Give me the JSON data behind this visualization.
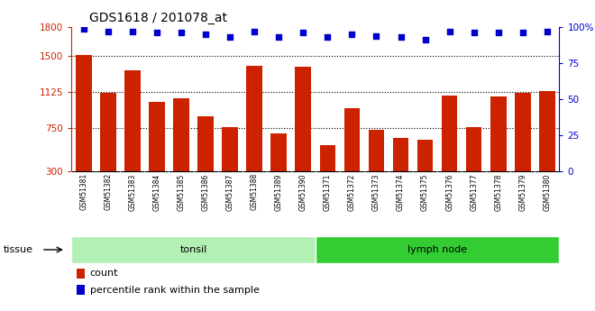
{
  "title": "GDS1618 / 201078_at",
  "samples": [
    "GSM51381",
    "GSM51382",
    "GSM51383",
    "GSM51384",
    "GSM51385",
    "GSM51386",
    "GSM51387",
    "GSM51388",
    "GSM51389",
    "GSM51390",
    "GSM51371",
    "GSM51372",
    "GSM51373",
    "GSM51374",
    "GSM51375",
    "GSM51376",
    "GSM51377",
    "GSM51378",
    "GSM51379",
    "GSM51380"
  ],
  "counts": [
    1510,
    1120,
    1350,
    1020,
    1060,
    870,
    760,
    1400,
    690,
    1390,
    570,
    960,
    730,
    650,
    630,
    1090,
    760,
    1080,
    1120,
    1130
  ],
  "percentiles": [
    99,
    97,
    97,
    96,
    96,
    95,
    93,
    97,
    93,
    96,
    93,
    95,
    94,
    93,
    91,
    97,
    96,
    96,
    96,
    97
  ],
  "tissue_groups": [
    {
      "label": "tonsil",
      "start": 0,
      "end": 10,
      "color": "#b3f0b3"
    },
    {
      "label": "lymph node",
      "start": 10,
      "end": 20,
      "color": "#33cc33"
    }
  ],
  "bar_color": "#cc2200",
  "dot_color": "#0000cc",
  "ylim_left": [
    300,
    1800
  ],
  "ylim_right": [
    0,
    100
  ],
  "yticks_left": [
    300,
    750,
    1125,
    1500,
    1800
  ],
  "yticks_right": [
    0,
    25,
    50,
    75,
    100
  ],
  "grid_values": [
    750,
    1125,
    1500
  ],
  "plot_bg": "#ffffff",
  "xticklabel_bg": "#d0d0d0"
}
